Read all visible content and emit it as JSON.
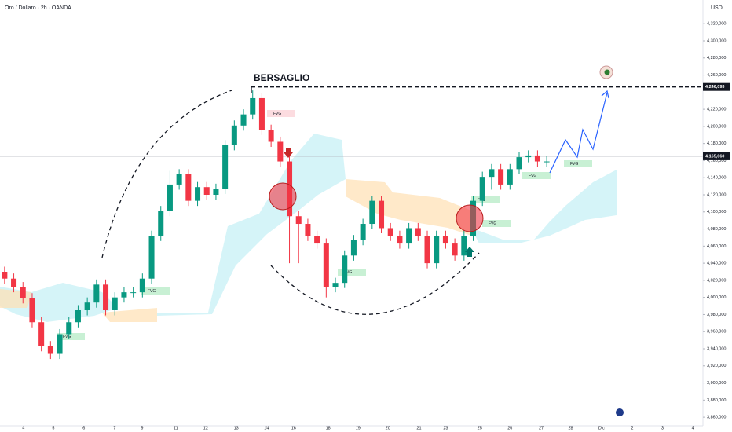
{
  "chart_data": {
    "type": "candlestick",
    "title": "Oro / Dollaro · 2h · OANDA",
    "currency": "USD",
    "annotation": "BERSAGLIO",
    "fvg_labels": [
      "FVG",
      "FVG",
      "FVG",
      "FVG",
      "FVG",
      "FVG",
      "FVG",
      "FVG"
    ],
    "up_color": "#089981",
    "down_color": "#f23645",
    "xlim": [
      -0.5,
      76
    ],
    "ylim": [
      3850000,
      4345000
    ],
    "price_lines": [
      {
        "value": 4246093,
        "label": "4,246,093",
        "style": "dashed"
      },
      {
        "value": 4165060,
        "label": "4,165,060",
        "style": "solid"
      }
    ],
    "xticks": [
      {
        "value": 2.05,
        "label": "4"
      },
      {
        "value": 5.3,
        "label": "5"
      },
      {
        "value": 8.63,
        "label": "6"
      },
      {
        "value": 11.97,
        "label": "7"
      },
      {
        "value": 14.96,
        "label": "9"
      },
      {
        "value": 18.63,
        "label": "11"
      },
      {
        "value": 21.88,
        "label": "12"
      },
      {
        "value": 25.2,
        "label": "13"
      },
      {
        "value": 28.5,
        "label": "14"
      },
      {
        "value": 31.45,
        "label": "16"
      },
      {
        "value": 35.2,
        "label": "18"
      },
      {
        "value": 38.46,
        "label": "19"
      },
      {
        "value": 41.7,
        "label": "20"
      },
      {
        "value": 45.1,
        "label": "21"
      },
      {
        "value": 48.0,
        "label": "23"
      },
      {
        "value": 51.7,
        "label": "25"
      },
      {
        "value": 55.0,
        "label": "26"
      },
      {
        "value": 58.4,
        "label": "27"
      },
      {
        "value": 61.6,
        "label": "28"
      },
      {
        "value": 64.96,
        "label": "Dic"
      },
      {
        "value": 68.3,
        "label": "2"
      },
      {
        "value": 71.6,
        "label": "3"
      },
      {
        "value": 74.9,
        "label": "4"
      }
    ],
    "yticks": [
      {
        "value": 3860000,
        "label": "3,860,000"
      },
      {
        "value": 3880000,
        "label": "3,880,000"
      },
      {
        "value": 3900000,
        "label": "3,900,000"
      },
      {
        "value": 3920000,
        "label": "3,920,000"
      },
      {
        "value": 3940000,
        "label": "3,940,000"
      },
      {
        "value": 3960000,
        "label": "3,960,000"
      },
      {
        "value": 3980000,
        "label": "3,980,000"
      },
      {
        "value": 4000000,
        "label": "4,000,000"
      },
      {
        "value": 4020000,
        "label": "4,020,000"
      },
      {
        "value": 4040000,
        "label": "4,040,000"
      },
      {
        "value": 4060000,
        "label": "4,060,000"
      },
      {
        "value": 4080000,
        "label": "4,080,000"
      },
      {
        "value": 4100000,
        "label": "4,100,000"
      },
      {
        "value": 4120000,
        "label": "4,120,000"
      },
      {
        "value": 4140000,
        "label": "4,140,000"
      },
      {
        "value": 4160000,
        "label": "4,160,000"
      },
      {
        "value": 4180000,
        "label": "4,180,000"
      },
      {
        "value": 4200000,
        "label": "4,200,000"
      },
      {
        "value": 4220000,
        "label": "4,220,000"
      },
      {
        "value": 4260000,
        "label": "4,260,000"
      },
      {
        "value": 4280000,
        "label": "4,280,000"
      },
      {
        "value": 4300000,
        "label": "4,300,000"
      },
      {
        "value": 4320000,
        "label": "4,320,000"
      }
    ],
    "open": [
      4030000,
      4022000,
      4012000,
      3999000,
      3971000,
      3943000,
      3934000,
      3957000,
      3971000,
      3985000,
      3994000,
      4015000,
      3985000,
      4000000,
      4006000,
      4006000,
      4022000,
      4072000,
      4101000,
      4132000,
      4144000,
      4113000,
      4129000,
      4120000,
      4127000,
      4178000,
      4201000,
      4214000,
      4233000,
      4196000,
      4182000,
      4159000,
      4095000,
      4086000,
      4072000,
      4063000,
      4012000,
      4017000,
      4049000,
      4067000,
      4086000,
      4113000,
      4081000,
      4072000,
      4063000,
      4081000,
      4072000,
      4040000,
      4072000,
      4063000,
      4049000,
      4072000,
      4113000,
      4141000,
      4150000,
      4132000,
      4150000,
      4164000,
      4166000,
      4159000
    ],
    "high": [
      4036000,
      4028000,
      4018000,
      4005000,
      3977000,
      3949000,
      3963000,
      3977000,
      3991000,
      4000000,
      4021000,
      4021000,
      4006000,
      4012000,
      4012000,
      4028000,
      4078000,
      4107000,
      4148000,
      4150000,
      4150000,
      4135000,
      4135000,
      4133000,
      4184000,
      4207000,
      4220000,
      4242000,
      4239000,
      4202000,
      4188000,
      4165000,
      4101000,
      4092000,
      4078000,
      4069000,
      4023000,
      4055000,
      4073000,
      4092000,
      4119000,
      4119000,
      4087000,
      4078000,
      4087000,
      4087000,
      4078000,
      4078000,
      4078000,
      4069000,
      4078000,
      4119000,
      4147000,
      4156000,
      4156000,
      4156000,
      4170000,
      4172000,
      4172000,
      4165000
    ],
    "low": [
      4016000,
      4006000,
      3993000,
      3965000,
      3937000,
      3928000,
      3928000,
      3951000,
      3965000,
      3979000,
      3988000,
      3979000,
      3979000,
      3994000,
      4000000,
      4000000,
      4016000,
      4066000,
      4095000,
      4126000,
      4107000,
      4107000,
      4114000,
      4114000,
      4121000,
      4172000,
      4195000,
      4208000,
      4190000,
      4176000,
      4153000,
      4040000,
      4040000,
      4066000,
      4057000,
      4000000,
      4006000,
      4011000,
      4043000,
      4061000,
      4080000,
      4075000,
      4066000,
      4057000,
      4057000,
      4066000,
      4034000,
      4034000,
      4057000,
      4043000,
      4043000,
      4066000,
      4107000,
      4126000,
      4126000,
      4126000,
      4144000,
      4158000,
      4153000,
      4153000
    ],
    "close": [
      4022000,
      4012000,
      3999000,
      3971000,
      3943000,
      3934000,
      3957000,
      3971000,
      3985000,
      3994000,
      4015000,
      3985000,
      4000000,
      4006000,
      4006000,
      4022000,
      4072000,
      4101000,
      4132000,
      4144000,
      4113000,
      4129000,
      4120000,
      4127000,
      4178000,
      4201000,
      4214000,
      4233000,
      4196000,
      4182000,
      4159000,
      4095000,
      4086000,
      4072000,
      4063000,
      4012000,
      4017000,
      4049000,
      4067000,
      4086000,
      4113000,
      4081000,
      4072000,
      4063000,
      4081000,
      4072000,
      4040000,
      4072000,
      4063000,
      4049000,
      4072000,
      4113000,
      4141000,
      4150000,
      4132000,
      4150000,
      4164000,
      4166000,
      4159000,
      4159000
    ]
  }
}
